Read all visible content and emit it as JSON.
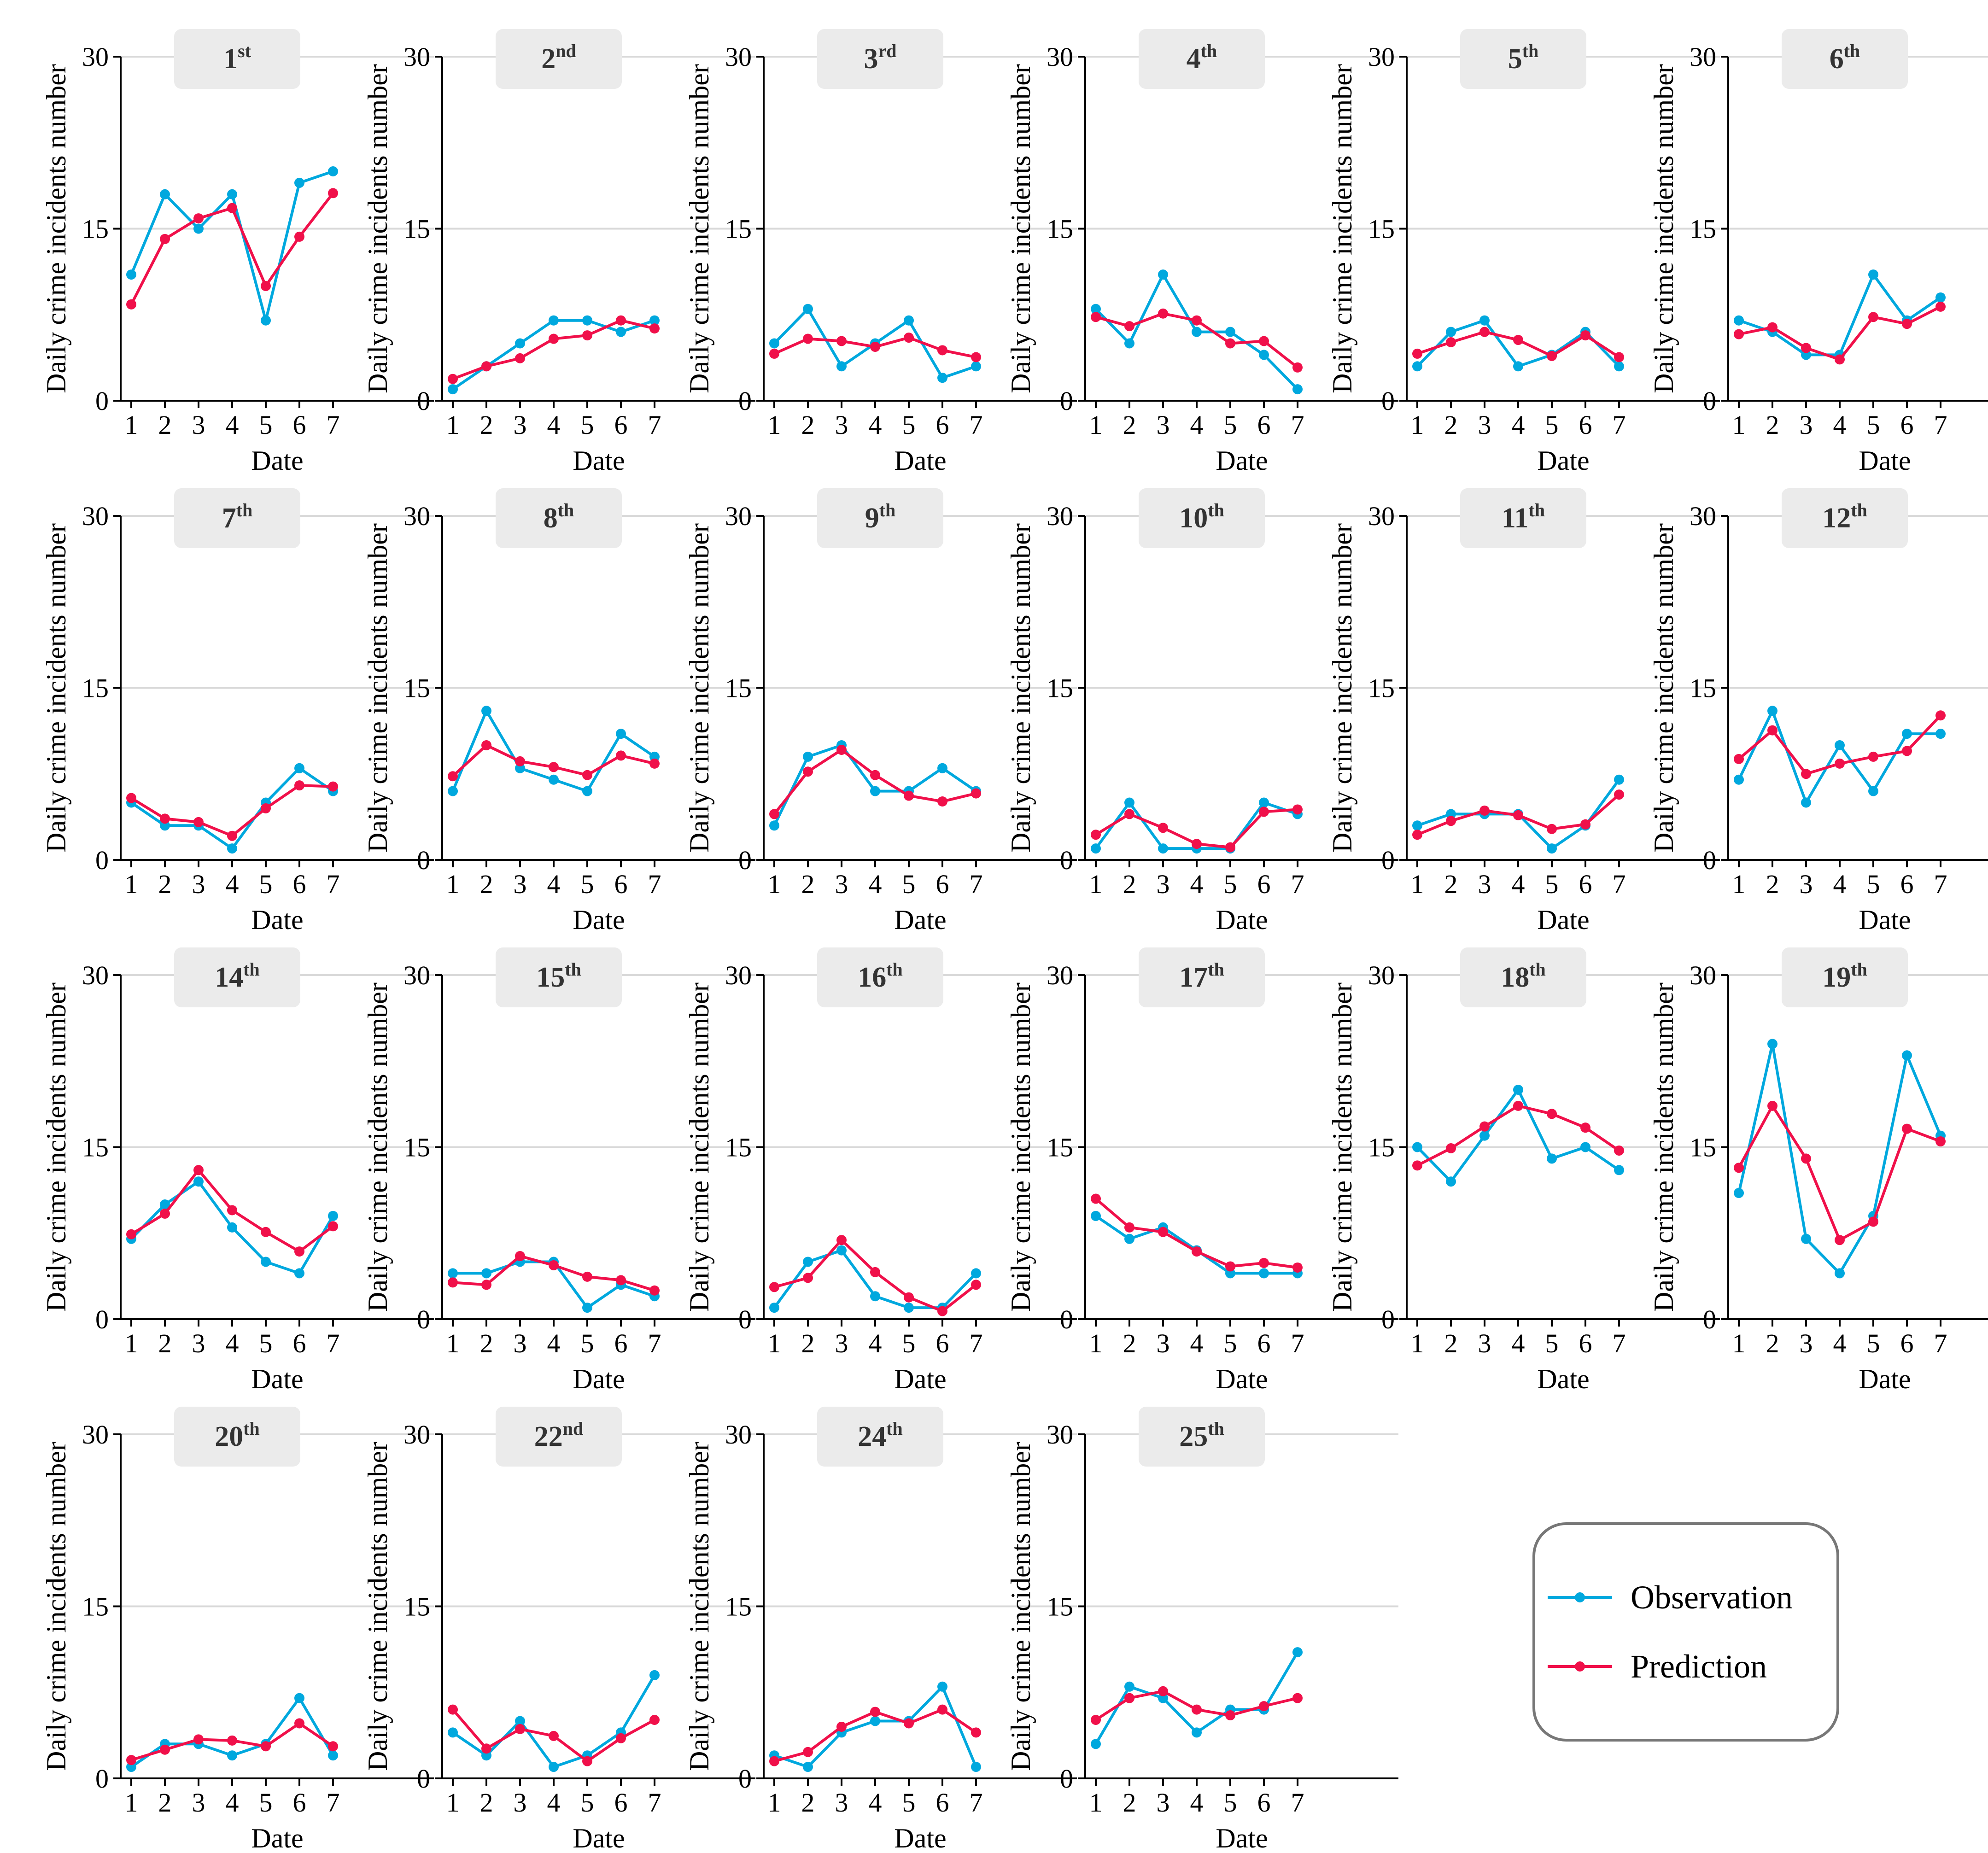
{
  "legend": {
    "position": "lower-right",
    "items": [
      {
        "label": "Observation",
        "color": "#00A8DE"
      },
      {
        "label": "Prediction",
        "color": "#F0104A"
      }
    ]
  },
  "axis_text": {
    "xlabel": "Date",
    "ylabel": "Daily crime incidents number"
  },
  "chart_data": [
    {
      "type": "line",
      "title": "1",
      "suffix": "st",
      "x": [
        1,
        2,
        3,
        4,
        5,
        6,
        7
      ],
      "xlabel": "Date",
      "ylabel": "Daily crime incidents number",
      "ylim": [
        0,
        30
      ],
      "yticks": [
        0,
        15,
        30
      ],
      "series": [
        {
          "name": "Observation",
          "values": [
            11,
            18,
            15,
            18,
            7,
            19,
            20
          ]
        },
        {
          "name": "Prediction",
          "values": [
            8.4,
            14.1,
            15.9,
            16.8,
            10,
            14.3,
            18.1
          ]
        }
      ]
    },
    {
      "type": "line",
      "title": "2",
      "suffix": "nd",
      "x": [
        1,
        2,
        3,
        4,
        5,
        6,
        7
      ],
      "xlabel": "Date",
      "ylabel": "Daily crime incidents number",
      "ylim": [
        0,
        30
      ],
      "yticks": [
        0,
        15,
        30
      ],
      "series": [
        {
          "name": "Observation",
          "values": [
            1,
            3,
            5,
            7,
            7,
            6,
            7
          ]
        },
        {
          "name": "Prediction",
          "values": [
            1.9,
            3,
            3.7,
            5.4,
            5.7,
            7,
            6.3
          ]
        }
      ]
    },
    {
      "type": "line",
      "title": "3",
      "suffix": "rd",
      "x": [
        1,
        2,
        3,
        4,
        5,
        6,
        7
      ],
      "xlabel": "Date",
      "ylabel": "Daily crime incidents number",
      "ylim": [
        0,
        30
      ],
      "yticks": [
        0,
        15,
        30
      ],
      "series": [
        {
          "name": "Observation",
          "values": [
            5,
            8,
            3,
            5,
            7,
            2,
            3
          ]
        },
        {
          "name": "Prediction",
          "values": [
            4.1,
            5.4,
            5.2,
            4.7,
            5.5,
            4.4,
            3.8
          ]
        }
      ]
    },
    {
      "type": "line",
      "title": "4",
      "suffix": "th",
      "x": [
        1,
        2,
        3,
        4,
        5,
        6,
        7
      ],
      "xlabel": "Date",
      "ylabel": "Daily crime incidents number",
      "ylim": [
        0,
        30
      ],
      "yticks": [
        0,
        15,
        30
      ],
      "series": [
        {
          "name": "Observation",
          "values": [
            8,
            5,
            11,
            6,
            6,
            4,
            1
          ]
        },
        {
          "name": "Prediction",
          "values": [
            7.3,
            6.5,
            7.6,
            7,
            5,
            5.2,
            2.9
          ]
        }
      ]
    },
    {
      "type": "line",
      "title": "5",
      "suffix": "th",
      "x": [
        1,
        2,
        3,
        4,
        5,
        6,
        7
      ],
      "xlabel": "Date",
      "ylabel": "Daily crime incidents number",
      "ylim": [
        0,
        30
      ],
      "yticks": [
        0,
        15,
        30
      ],
      "series": [
        {
          "name": "Observation",
          "values": [
            3,
            6,
            7,
            3,
            4,
            6,
            3
          ]
        },
        {
          "name": "Prediction",
          "values": [
            4.1,
            5.1,
            6,
            5.3,
            3.9,
            5.7,
            3.8
          ]
        }
      ]
    },
    {
      "type": "line",
      "title": "6",
      "suffix": "th",
      "x": [
        1,
        2,
        3,
        4,
        5,
        6,
        7
      ],
      "xlabel": "Date",
      "ylabel": "Daily crime incidents number",
      "ylim": [
        0,
        30
      ],
      "yticks": [
        0,
        15,
        30
      ],
      "series": [
        {
          "name": "Observation",
          "values": [
            7,
            6,
            4,
            4,
            11,
            7,
            9
          ]
        },
        {
          "name": "Prediction",
          "values": [
            5.8,
            6.4,
            4.6,
            3.6,
            7.3,
            6.7,
            8.2
          ]
        }
      ]
    },
    {
      "type": "line",
      "title": "7",
      "suffix": "th",
      "x": [
        1,
        2,
        3,
        4,
        5,
        6,
        7
      ],
      "xlabel": "Date",
      "ylabel": "Daily crime incidents number",
      "ylim": [
        0,
        30
      ],
      "yticks": [
        0,
        15,
        30
      ],
      "series": [
        {
          "name": "Observation",
          "values": [
            5,
            3,
            3,
            1,
            5,
            8,
            6
          ]
        },
        {
          "name": "Prediction",
          "values": [
            5.4,
            3.6,
            3.3,
            2.1,
            4.5,
            6.5,
            6.4
          ]
        }
      ]
    },
    {
      "type": "line",
      "title": "8",
      "suffix": "th",
      "x": [
        1,
        2,
        3,
        4,
        5,
        6,
        7
      ],
      "xlabel": "Date",
      "ylabel": "Daily crime incidents number",
      "ylim": [
        0,
        30
      ],
      "yticks": [
        0,
        15,
        30
      ],
      "series": [
        {
          "name": "Observation",
          "values": [
            6,
            13,
            8,
            7,
            6,
            11,
            9
          ]
        },
        {
          "name": "Prediction",
          "values": [
            7.3,
            10,
            8.6,
            8.1,
            7.4,
            9.1,
            8.4
          ]
        }
      ]
    },
    {
      "type": "line",
      "title": "9",
      "suffix": "th",
      "x": [
        1,
        2,
        3,
        4,
        5,
        6,
        7
      ],
      "xlabel": "Date",
      "ylabel": "Daily crime incidents number",
      "ylim": [
        0,
        30
      ],
      "yticks": [
        0,
        15,
        30
      ],
      "series": [
        {
          "name": "Observation",
          "values": [
            3,
            9,
            10,
            6,
            6,
            8,
            6
          ]
        },
        {
          "name": "Prediction",
          "values": [
            4,
            7.7,
            9.6,
            7.4,
            5.6,
            5.1,
            5.8
          ]
        }
      ]
    },
    {
      "type": "line",
      "title": "10",
      "suffix": "th",
      "x": [
        1,
        2,
        3,
        4,
        5,
        6,
        7
      ],
      "xlabel": "Date",
      "ylabel": "Daily crime incidents number",
      "ylim": [
        0,
        30
      ],
      "yticks": [
        0,
        15,
        30
      ],
      "series": [
        {
          "name": "Observation",
          "values": [
            1,
            5,
            1,
            1,
            1,
            5,
            4
          ]
        },
        {
          "name": "Prediction",
          "values": [
            2.2,
            4,
            2.8,
            1.4,
            1.1,
            4.2,
            4.4
          ]
        }
      ]
    },
    {
      "type": "line",
      "title": "11",
      "suffix": "th",
      "x": [
        1,
        2,
        3,
        4,
        5,
        6,
        7
      ],
      "xlabel": "Date",
      "ylabel": "Daily crime incidents number",
      "ylim": [
        0,
        30
      ],
      "yticks": [
        0,
        15,
        30
      ],
      "series": [
        {
          "name": "Observation",
          "values": [
            3,
            4,
            4,
            4,
            1,
            3,
            7
          ]
        },
        {
          "name": "Prediction",
          "values": [
            2.2,
            3.4,
            4.3,
            3.9,
            2.7,
            3.1,
            5.7
          ]
        }
      ]
    },
    {
      "type": "line",
      "title": "12",
      "suffix": "th",
      "x": [
        1,
        2,
        3,
        4,
        5,
        6,
        7
      ],
      "xlabel": "Date",
      "ylabel": "Daily crime incidents number",
      "ylim": [
        0,
        30
      ],
      "yticks": [
        0,
        15,
        30
      ],
      "series": [
        {
          "name": "Observation",
          "values": [
            7,
            13,
            5,
            10,
            6,
            11,
            11
          ]
        },
        {
          "name": "Prediction",
          "values": [
            8.8,
            11.3,
            7.5,
            8.4,
            9,
            9.5,
            12.6
          ]
        }
      ]
    },
    {
      "type": "line",
      "title": "14",
      "suffix": "th",
      "x": [
        1,
        2,
        3,
        4,
        5,
        6,
        7
      ],
      "xlabel": "Date",
      "ylabel": "Daily crime incidents number",
      "ylim": [
        0,
        30
      ],
      "yticks": [
        0,
        15,
        30
      ],
      "series": [
        {
          "name": "Observation",
          "values": [
            7,
            10,
            12,
            8,
            5,
            4,
            9
          ]
        },
        {
          "name": "Prediction",
          "values": [
            7.4,
            9.2,
            13,
            9.5,
            7.6,
            5.9,
            8.1
          ]
        }
      ]
    },
    {
      "type": "line",
      "title": "15",
      "suffix": "th",
      "x": [
        1,
        2,
        3,
        4,
        5,
        6,
        7
      ],
      "xlabel": "Date",
      "ylabel": "Daily crime incidents number",
      "ylim": [
        0,
        30
      ],
      "yticks": [
        0,
        15,
        30
      ],
      "series": [
        {
          "name": "Observation",
          "values": [
            4,
            4,
            5,
            5,
            1,
            3,
            2
          ]
        },
        {
          "name": "Prediction",
          "values": [
            3.2,
            3,
            5.5,
            4.7,
            3.7,
            3.4,
            2.5
          ]
        }
      ]
    },
    {
      "type": "line",
      "title": "16",
      "suffix": "th",
      "x": [
        1,
        2,
        3,
        4,
        5,
        6,
        7
      ],
      "xlabel": "Date",
      "ylabel": "Daily crime incidents number",
      "ylim": [
        0,
        30
      ],
      "yticks": [
        0,
        15,
        30
      ],
      "series": [
        {
          "name": "Observation",
          "values": [
            1,
            5,
            6,
            2,
            1,
            1,
            4
          ]
        },
        {
          "name": "Prediction",
          "values": [
            2.8,
            3.6,
            6.9,
            4.1,
            1.9,
            0.7,
            3
          ]
        }
      ]
    },
    {
      "type": "line",
      "title": "17",
      "suffix": "th",
      "x": [
        1,
        2,
        3,
        4,
        5,
        6,
        7
      ],
      "xlabel": "Date",
      "ylabel": "Daily crime incidents number",
      "ylim": [
        0,
        30
      ],
      "yticks": [
        0,
        15,
        30
      ],
      "series": [
        {
          "name": "Observation",
          "values": [
            9,
            7,
            8,
            6,
            4,
            4,
            4
          ]
        },
        {
          "name": "Prediction",
          "values": [
            10.5,
            8,
            7.6,
            5.9,
            4.6,
            4.9,
            4.5
          ]
        }
      ]
    },
    {
      "type": "line",
      "title": "18",
      "suffix": "th",
      "x": [
        1,
        2,
        3,
        4,
        5,
        6,
        7
      ],
      "xlabel": "Date",
      "ylabel": "Daily crime incidents number",
      "ylim": [
        0,
        30
      ],
      "yticks": [
        0,
        15,
        30
      ],
      "series": [
        {
          "name": "Observation",
          "values": [
            15,
            12,
            16,
            20,
            14,
            15,
            13
          ]
        },
        {
          "name": "Prediction",
          "values": [
            13.4,
            14.9,
            16.8,
            18.6,
            17.9,
            16.7,
            14.7
          ]
        }
      ]
    },
    {
      "type": "line",
      "title": "19",
      "suffix": "th",
      "x": [
        1,
        2,
        3,
        4,
        5,
        6,
        7
      ],
      "xlabel": "Date",
      "ylabel": "Daily crime incidents number",
      "ylim": [
        0,
        30
      ],
      "yticks": [
        0,
        15,
        30
      ],
      "series": [
        {
          "name": "Observation",
          "values": [
            11,
            24,
            7,
            4,
            9,
            23,
            16
          ]
        },
        {
          "name": "Prediction",
          "values": [
            13.2,
            18.6,
            14,
            6.9,
            8.5,
            16.6,
            15.5
          ]
        }
      ]
    },
    {
      "type": "line",
      "title": "20",
      "suffix": "th",
      "x": [
        1,
        2,
        3,
        4,
        5,
        6,
        7
      ],
      "xlabel": "Date",
      "ylabel": "Daily crime incidents number",
      "ylim": [
        0,
        30
      ],
      "yticks": [
        0,
        15,
        30
      ],
      "series": [
        {
          "name": "Observation",
          "values": [
            1,
            3,
            3,
            2,
            3,
            7,
            2
          ]
        },
        {
          "name": "Prediction",
          "values": [
            1.6,
            2.5,
            3.4,
            3.3,
            2.8,
            4.8,
            2.8
          ]
        }
      ]
    },
    {
      "type": "line",
      "title": "22",
      "suffix": "nd",
      "x": [
        1,
        2,
        3,
        4,
        5,
        6,
        7
      ],
      "xlabel": "Date",
      "ylabel": "Daily crime incidents number",
      "ylim": [
        0,
        30
      ],
      "yticks": [
        0,
        15,
        30
      ],
      "series": [
        {
          "name": "Observation",
          "values": [
            4,
            2,
            5,
            1,
            2,
            4,
            9
          ]
        },
        {
          "name": "Prediction",
          "values": [
            6,
            2.6,
            4.3,
            3.7,
            1.5,
            3.5,
            5.1
          ]
        }
      ]
    },
    {
      "type": "line",
      "title": "24",
      "suffix": "th",
      "x": [
        1,
        2,
        3,
        4,
        5,
        6,
        7
      ],
      "xlabel": "Date",
      "ylabel": "Daily crime incidents number",
      "ylim": [
        0,
        30
      ],
      "yticks": [
        0,
        15,
        30
      ],
      "series": [
        {
          "name": "Observation",
          "values": [
            2,
            1,
            4,
            5,
            5,
            8,
            1
          ]
        },
        {
          "name": "Prediction",
          "values": [
            1.5,
            2.3,
            4.5,
            5.8,
            4.8,
            6,
            4
          ]
        }
      ]
    },
    {
      "type": "line",
      "title": "25",
      "suffix": "th",
      "x": [
        1,
        2,
        3,
        4,
        5,
        6,
        7
      ],
      "xlabel": "Date",
      "ylabel": "Daily crime incidents number",
      "ylim": [
        0,
        30
      ],
      "yticks": [
        0,
        15,
        30
      ],
      "series": [
        {
          "name": "Observation",
          "values": [
            3,
            8,
            7,
            4,
            6,
            6,
            11
          ]
        },
        {
          "name": "Prediction",
          "values": [
            5.1,
            7,
            7.6,
            6,
            5.5,
            6.3,
            7
          ]
        }
      ]
    }
  ]
}
